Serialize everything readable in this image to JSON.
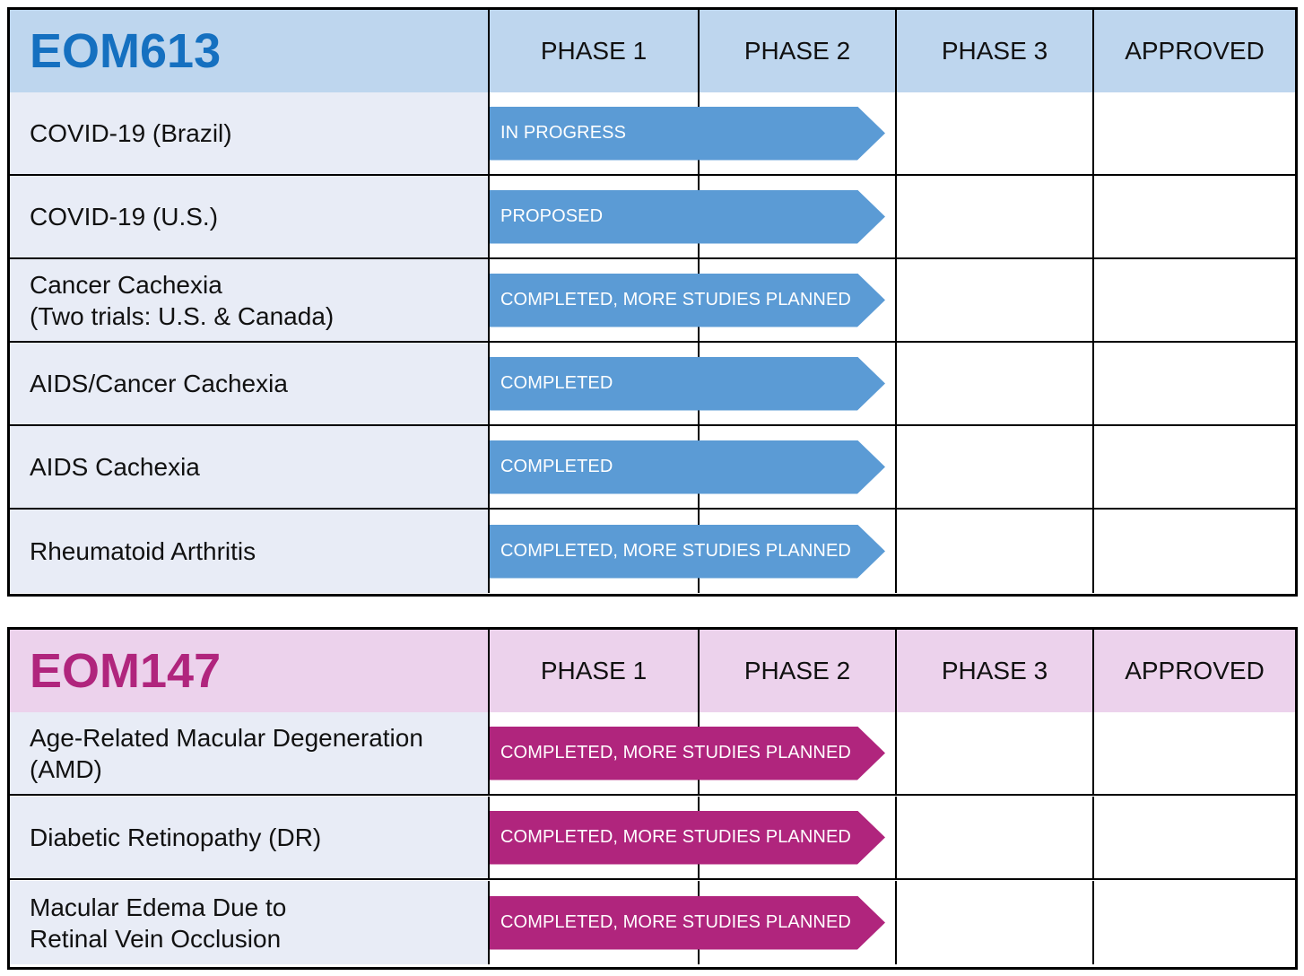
{
  "colors": {
    "eom613_name": "#1570c0",
    "eom613_header_bg": "#bed6ee",
    "eom613_row_bg": "#e8ecf6",
    "eom613_arrow": "#5b9bd5",
    "eom147_name": "#b0257d",
    "eom147_header_bg": "#ecd2ec",
    "eom147_row_bg": "#e8ecf6",
    "eom147_arrow": "#b0257d"
  },
  "phases": [
    "PHASE 1",
    "PHASE 2",
    "PHASE 3",
    "APPROVED"
  ],
  "pipelines": [
    {
      "drug": "EOM613",
      "rows": [
        {
          "indication": "COVID-19 (Brazil)",
          "status": "IN PROGRESS"
        },
        {
          "indication": "COVID-19 (U.S.)",
          "status": "PROPOSED"
        },
        {
          "indication": "Cancer Cachexia\n(Two trials: U.S. & Canada)",
          "status": "COMPLETED, MORE STUDIES PLANNED"
        },
        {
          "indication": "AIDS/Cancer Cachexia",
          "status": "COMPLETED"
        },
        {
          "indication": "AIDS Cachexia",
          "status": "COMPLETED"
        },
        {
          "indication": "Rheumatoid Arthritis",
          "status": "COMPLETED, MORE STUDIES PLANNED"
        }
      ]
    },
    {
      "drug": "EOM147",
      "rows": [
        {
          "indication": "Age-Related Macular Degeneration\n(AMD)",
          "status": "COMPLETED, MORE STUDIES PLANNED"
        },
        {
          "indication": "Diabetic Retinopathy (DR)",
          "status": "COMPLETED, MORE STUDIES PLANNED"
        },
        {
          "indication": "Macular Edema Due to\nRetinal Vein Occlusion",
          "status": "COMPLETED, MORE STUDIES PLANNED"
        }
      ]
    }
  ]
}
